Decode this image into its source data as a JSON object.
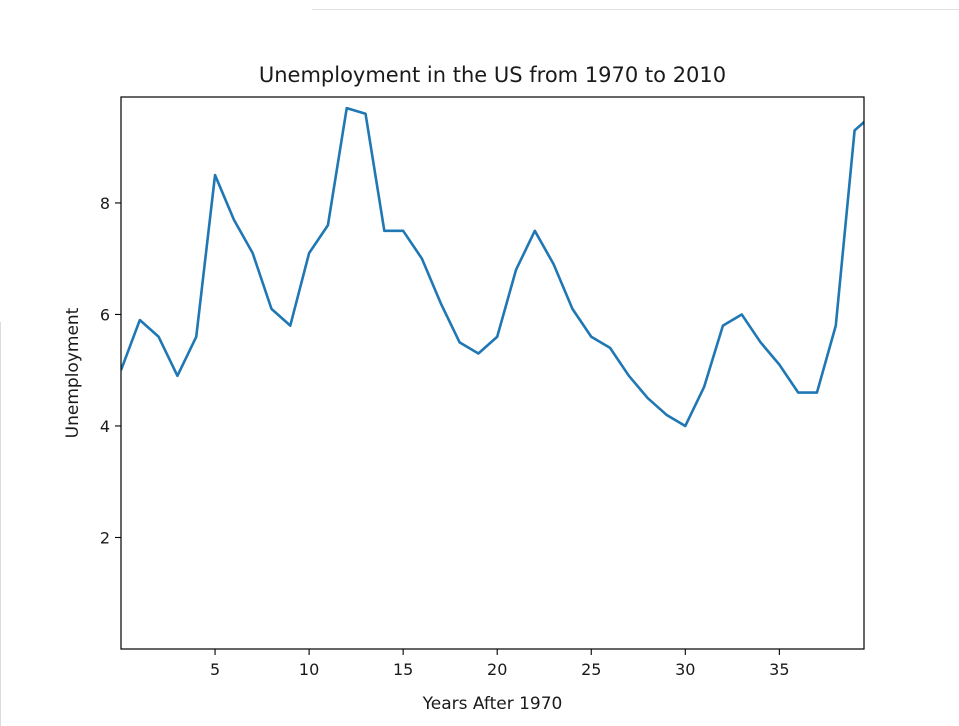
{
  "chart_data": {
    "type": "line",
    "title": "Unemployment in the US from 1970 to 2010",
    "xlabel": "Years After 1970",
    "ylabel": "Unemployment",
    "xlim": [
      0,
      39.5
    ],
    "ylim": [
      0,
      9.9
    ],
    "xticks": [
      5,
      10,
      15,
      20,
      25,
      30,
      35
    ],
    "yticks": [
      2,
      4,
      6,
      8
    ],
    "grid": false,
    "line_color": "#1f77b4",
    "series": [
      {
        "x": [
          0,
          1,
          2,
          3,
          4,
          5,
          6,
          7,
          8,
          9,
          10,
          11,
          12,
          13,
          14,
          15,
          16,
          17,
          18,
          19,
          20,
          21,
          22,
          23,
          24,
          25,
          26,
          27,
          28,
          29,
          30,
          31,
          32,
          33,
          34,
          35,
          36,
          37,
          38,
          39,
          40
        ],
        "values": [
          5.0,
          5.9,
          5.6,
          4.9,
          5.6,
          8.5,
          7.7,
          7.1,
          6.1,
          5.8,
          7.1,
          7.6,
          9.7,
          9.6,
          7.5,
          7.5,
          7.0,
          6.2,
          5.5,
          5.3,
          5.6,
          6.8,
          7.5,
          6.9,
          6.1,
          5.6,
          5.4,
          4.9,
          4.5,
          4.2,
          4.0,
          4.7,
          5.8,
          6.0,
          5.5,
          5.1,
          4.6,
          4.6,
          5.8,
          9.3,
          9.6
        ]
      }
    ]
  }
}
